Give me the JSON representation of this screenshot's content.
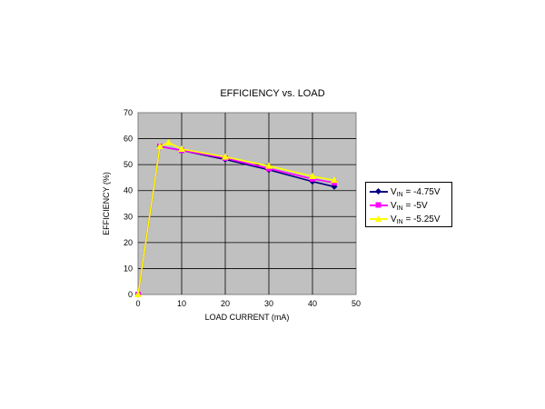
{
  "chart_data": {
    "type": "line",
    "title": "EFFICIENCY vs. LOAD",
    "xlabel": "LOAD CURRENT (mA)",
    "ylabel": "EFFICIENCY (%)",
    "xlim": [
      0,
      50
    ],
    "ylim": [
      0,
      70
    ],
    "x_ticks": [
      "0",
      "10",
      "20",
      "30",
      "40",
      "50"
    ],
    "y_ticks": [
      "0",
      "10",
      "20",
      "30",
      "40",
      "50",
      "60",
      "70"
    ],
    "grid": true,
    "plot_background": "#c0c0c0",
    "legend_position": "right",
    "series": [
      {
        "name_main": "V",
        "name_sub": "IN",
        "name_rest": " = -4.75V",
        "color": "#000080",
        "marker": "diamond",
        "points": [
          [
            0,
            0
          ],
          [
            5,
            57
          ],
          [
            10,
            55.5
          ],
          [
            20,
            52
          ],
          [
            30,
            48
          ],
          [
            40,
            43.5
          ],
          [
            45,
            41.5
          ]
        ]
      },
      {
        "name_main": "V",
        "name_sub": "IN",
        "name_rest": " = -5V",
        "color": "#ff00ff",
        "marker": "square",
        "points": [
          [
            0,
            0
          ],
          [
            5,
            57
          ],
          [
            10,
            55.5
          ],
          [
            20,
            52.5
          ],
          [
            30,
            48.5
          ],
          [
            40,
            44.5
          ],
          [
            45,
            43
          ]
        ]
      },
      {
        "name_main": "V",
        "name_sub": "IN",
        "name_rest": " = -5.25V",
        "color": "#ffff00",
        "marker": "triangle",
        "points": [
          [
            0,
            0
          ],
          [
            5,
            57
          ],
          [
            7,
            58.5
          ],
          [
            10,
            56
          ],
          [
            20,
            53
          ],
          [
            30,
            49.5
          ],
          [
            40,
            45.5
          ],
          [
            45,
            44
          ]
        ]
      }
    ]
  }
}
